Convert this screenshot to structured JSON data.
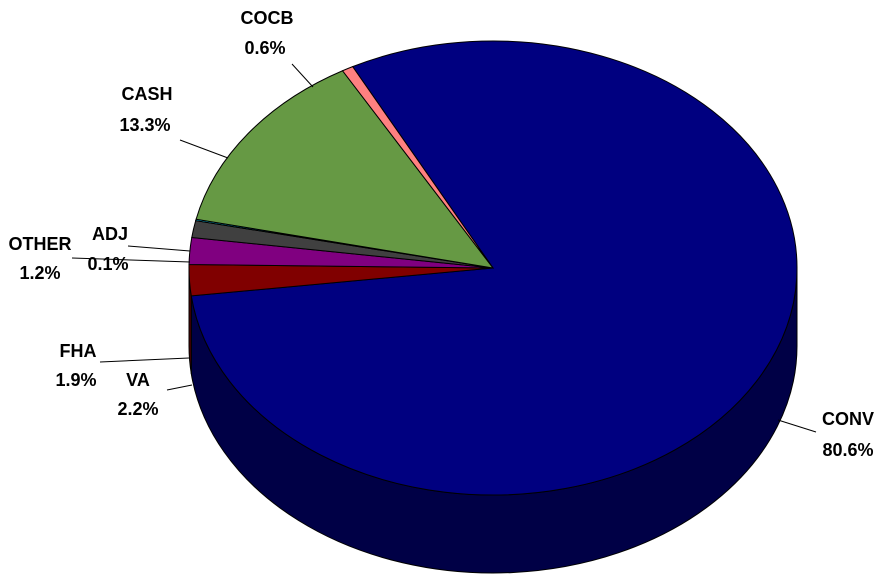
{
  "chart_data": {
    "type": "pie",
    "style": "3d",
    "start_from": "CONV",
    "slices": [
      {
        "label": "CONV",
        "pct_label": "80.6%",
        "value": 80.6,
        "color": "#000080",
        "side_color": "#000046"
      },
      {
        "label": "VA",
        "pct_label": "2.2%",
        "value": 2.2,
        "color": "#800000",
        "side_color": "#4a0000"
      },
      {
        "label": "FHA",
        "pct_label": "1.9%",
        "value": 1.9,
        "color": "#800080",
        "side_color": "#4a004a"
      },
      {
        "label": "OTHER",
        "pct_label": "1.2%",
        "value": 1.2,
        "color": "#404040",
        "side_color": "#222222"
      },
      {
        "label": "ADJ",
        "pct_label": "0.1%",
        "value": 0.1,
        "color": "#00ccff",
        "side_color": "#007799"
      },
      {
        "label": "CASH",
        "pct_label": "13.3%",
        "value": 13.3,
        "color": "#669944",
        "side_color": "#3d5c28"
      },
      {
        "label": "COCB",
        "pct_label": "0.6%",
        "value": 0.6,
        "color": "#ff8080",
        "side_color": "#b35a5a"
      }
    ],
    "legend": "none"
  }
}
